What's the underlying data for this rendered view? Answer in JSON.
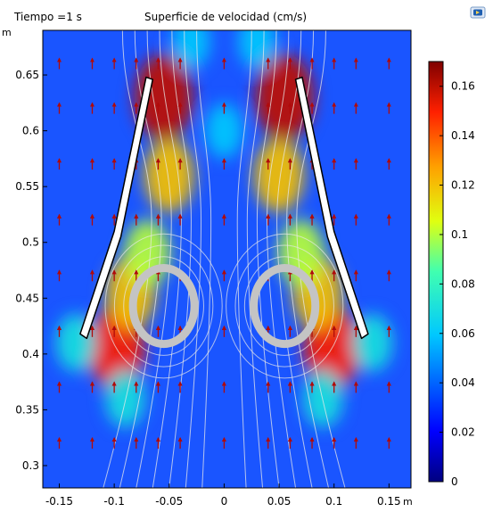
{
  "header": {
    "time_label": "Tiempo =1 s",
    "plot_title": "Superficie de velocidad (cm/s)",
    "app_icon": "comsol-logo-icon"
  },
  "chart_data": {
    "type": "heatmap",
    "title": "Superficie de velocidad (cm/s)",
    "subtitle": "Tiempo =1 s",
    "xlabel": "m",
    "ylabel": "m",
    "xlim": [
      -0.165,
      0.17
    ],
    "ylim": [
      0.28,
      0.69
    ],
    "x_ticks": [
      -0.15,
      -0.1,
      -0.05,
      0,
      0.05,
      0.1,
      0.15
    ],
    "x_tick_labels": [
      "-0.15",
      "-0.1",
      "-0.05",
      "0",
      "0.05",
      "0.1",
      "0.15"
    ],
    "y_ticks": [
      0.3,
      0.35,
      0.4,
      0.45,
      0.5,
      0.55,
      0.6,
      0.65
    ],
    "y_tick_labels": [
      "0.3",
      "0.35",
      "0.4",
      "0.45",
      "0.5",
      "0.55",
      "0.6",
      "0.65"
    ],
    "grid": false,
    "colormap": "rainbow",
    "colorbar": {
      "min": 0,
      "max": 0.17,
      "ticks": [
        0,
        0.02,
        0.04,
        0.06,
        0.08,
        0.1,
        0.12,
        0.14,
        0.16
      ],
      "tick_labels": [
        "0",
        "0.02",
        "0.04",
        "0.06",
        "0.08",
        "0.1",
        "0.12",
        "0.14",
        "0.16"
      ]
    },
    "field_hotspots": [
      {
        "x": -0.055,
        "y": 0.63,
        "value": 0.16
      },
      {
        "x": 0.055,
        "y": 0.63,
        "value": 0.16
      },
      {
        "x": -0.05,
        "y": 0.56,
        "value": 0.12
      },
      {
        "x": 0.05,
        "y": 0.56,
        "value": 0.12
      },
      {
        "x": -0.098,
        "y": 0.405,
        "value": 0.15
      },
      {
        "x": 0.098,
        "y": 0.405,
        "value": 0.15
      },
      {
        "x": -0.085,
        "y": 0.455,
        "value": 0.12
      },
      {
        "x": 0.085,
        "y": 0.455,
        "value": 0.12
      },
      {
        "x": -0.07,
        "y": 0.49,
        "value": 0.1
      },
      {
        "x": 0.07,
        "y": 0.49,
        "value": 0.1
      },
      {
        "x": -0.135,
        "y": 0.41,
        "value": 0.07
      },
      {
        "x": 0.135,
        "y": 0.41,
        "value": 0.07
      },
      {
        "x": -0.09,
        "y": 0.36,
        "value": 0.07
      },
      {
        "x": 0.09,
        "y": 0.36,
        "value": 0.07
      },
      {
        "x": 0,
        "y": 0.6,
        "value": 0.06
      },
      {
        "x": -0.03,
        "y": 0.68,
        "value": 0.06
      },
      {
        "x": 0.03,
        "y": 0.68,
        "value": 0.06
      }
    ],
    "plates": [
      {
        "side": "left",
        "points": [
          [
            -0.071,
            0.648
          ],
          [
            -0.1,
            0.51
          ],
          [
            -0.131,
            0.418
          ],
          [
            -0.125,
            0.414
          ],
          [
            -0.094,
            0.505
          ],
          [
            -0.065,
            0.646
          ]
        ]
      },
      {
        "side": "right",
        "points": [
          [
            0.071,
            0.648
          ],
          [
            0.1,
            0.51
          ],
          [
            0.131,
            0.418
          ],
          [
            0.125,
            0.414
          ],
          [
            0.094,
            0.505
          ],
          [
            0.065,
            0.646
          ]
        ]
      }
    ],
    "rings": [
      {
        "cx": -0.055,
        "cy": 0.443,
        "rx": 0.028,
        "ry": 0.034
      },
      {
        "cx": 0.055,
        "cy": 0.443,
        "rx": 0.028,
        "ry": 0.034
      }
    ],
    "arrow_positions_x": [
      -0.15,
      -0.12,
      -0.1,
      -0.08,
      -0.06,
      -0.04,
      0,
      0.04,
      0.06,
      0.08,
      0.1,
      0.12,
      0.15
    ],
    "arrow_positions_y": [
      0.32,
      0.37,
      0.42,
      0.47,
      0.52,
      0.57,
      0.62,
      0.66
    ]
  },
  "colors": {
    "arrow": "#b00a0a",
    "streamline": "#e8e8e8",
    "plate_fill": "#ffffff",
    "plate_edge": "#000000",
    "ring": "#c4c4c4",
    "frame": "#000000"
  }
}
